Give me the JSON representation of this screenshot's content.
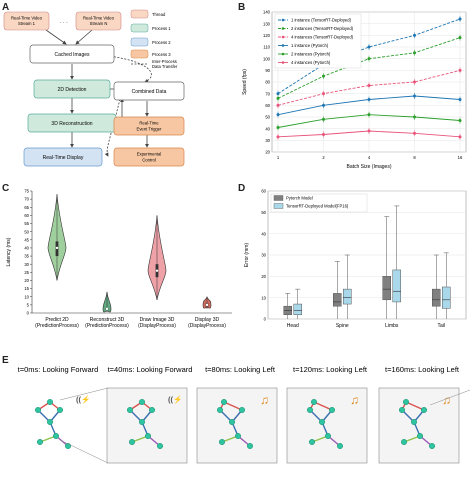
{
  "panels": {
    "a": "A",
    "b": "B",
    "c": "C",
    "d": "D",
    "e": "E"
  },
  "flow": {
    "nodes": {
      "v1": "Real-Time Video Stream 1",
      "vn": "Real-Time Video Stream N",
      "cached": "Cached Images",
      "det2d": "2D Detection",
      "recon3d": "3D Reconstruction",
      "display": "Real-Time Display",
      "combined": "Combined Data",
      "trigger": "Real-Time Event Trigger",
      "control": "Experimental Control"
    },
    "legend": {
      "thread": "Thread",
      "p1": "Process 1",
      "p2": "Process 2",
      "p3": "Process 3",
      "ipc": "Inter-Process Data Transfer"
    },
    "colors": {
      "thread": "#f9d7c2",
      "p1": "#cfe9dc",
      "p2": "#d3e3f3",
      "p3": "#f7c7a3",
      "gray": "#ffffff"
    }
  },
  "chart_data": [
    {
      "type": "line",
      "xlabel": "Batch Size (Images)",
      "ylabel": "Speed (fps)",
      "categories": [
        "1",
        "2",
        "4",
        "8",
        "16"
      ],
      "ylim": [
        20,
        140
      ],
      "yticks": [
        20,
        30,
        40,
        50,
        60,
        70,
        80,
        90,
        100,
        110,
        120,
        130,
        140
      ],
      "legend_placement": "top-left",
      "grid": true,
      "series": [
        {
          "name": "1 instance (TensorRT-Deployed)",
          "values": [
            70,
            95,
            110,
            120,
            134
          ],
          "color": "#1f77b4",
          "dash": true
        },
        {
          "name": "2 instances (TensorRT-Deployed)",
          "values": [
            66,
            85,
            100,
            105,
            118
          ],
          "color": "#2ca02c",
          "dash": true
        },
        {
          "name": "4 instances (TensorRT-Deployed)",
          "values": [
            60,
            70,
            77,
            80,
            90
          ],
          "color": "#e8557a",
          "dash": true
        },
        {
          "name": "1 instance (Pytorch)",
          "values": [
            52,
            60,
            65,
            68,
            65
          ],
          "color": "#1f77b4",
          "dash": false
        },
        {
          "name": "2 instances (Pytorch)",
          "values": [
            41,
            48,
            52,
            50,
            47
          ],
          "color": "#2ca02c",
          "dash": false
        },
        {
          "name": "4 instances (Pytorch)",
          "values": [
            33,
            35,
            38,
            36,
            33
          ],
          "color": "#e8557a",
          "dash": false
        }
      ]
    },
    {
      "type": "violin",
      "ylabel": "Latency (ms)",
      "ylim": [
        0,
        75
      ],
      "yticks": [
        0,
        5,
        10,
        15,
        20,
        25,
        30,
        35,
        40,
        45,
        50,
        55,
        60,
        65,
        70,
        75
      ],
      "categories": [
        "Predict 2D (PredictionProcess)",
        "Reconstruct 3D (PredictionProcess)",
        "Draw Image 3D (DisplayProcess)",
        "Display 3D (DisplayProcess)"
      ],
      "violins": [
        {
          "min": 20,
          "q1": 35,
          "median": 40,
          "q3": 44,
          "max": 73,
          "color": "#7fbf7b"
        },
        {
          "min": 1,
          "q1": 2,
          "median": 2.5,
          "q3": 3,
          "max": 13,
          "color": "#2e8b57"
        },
        {
          "min": 8,
          "q1": 22,
          "median": 26,
          "q3": 30,
          "max": 60,
          "color": "#e8828a"
        },
        {
          "min": 3,
          "q1": 4,
          "median": 5,
          "q3": 6,
          "max": 10,
          "color": "#c0392b"
        }
      ]
    },
    {
      "type": "box",
      "ylabel": "Error (mm)",
      "ylim": [
        0,
        60
      ],
      "yticks": [
        0,
        10,
        20,
        30,
        40,
        50,
        60
      ],
      "categories": [
        "Head",
        "Spine",
        "Limbs",
        "Tail"
      ],
      "legend_placement": "top-left",
      "series": [
        {
          "name": "Pytorch Model",
          "color": "#808080",
          "boxes": [
            [
              0,
              2,
              4,
              6,
              12
            ],
            [
              0,
              6,
              8,
              12,
              27
            ],
            [
              0,
              9,
              14,
              20,
              48
            ],
            [
              0,
              6,
              9,
              14,
              30
            ]
          ]
        },
        {
          "name": "TensorRT-Deployed Model(FP16)",
          "color": "#a8d8ea",
          "boxes": [
            [
              0,
              2,
              4,
              7,
              14
            ],
            [
              0,
              7,
              10,
              14,
              30
            ],
            [
              0,
              8,
              13,
              23,
              53
            ],
            [
              0,
              5,
              9,
              15,
              31
            ]
          ]
        }
      ]
    }
  ],
  "timeline": {
    "frames": [
      {
        "title": "t=0ms: Looking Forward",
        "cue": "alarm"
      },
      {
        "title": "t=40ms: Looking Forward",
        "cue": "alarm"
      },
      {
        "title": "t=80ms: Looking Left",
        "cue": "music"
      },
      {
        "title": "t=120ms: Looking Left",
        "cue": "music"
      },
      {
        "title": "t=160ms: Looking Left",
        "cue": "music"
      }
    ]
  }
}
